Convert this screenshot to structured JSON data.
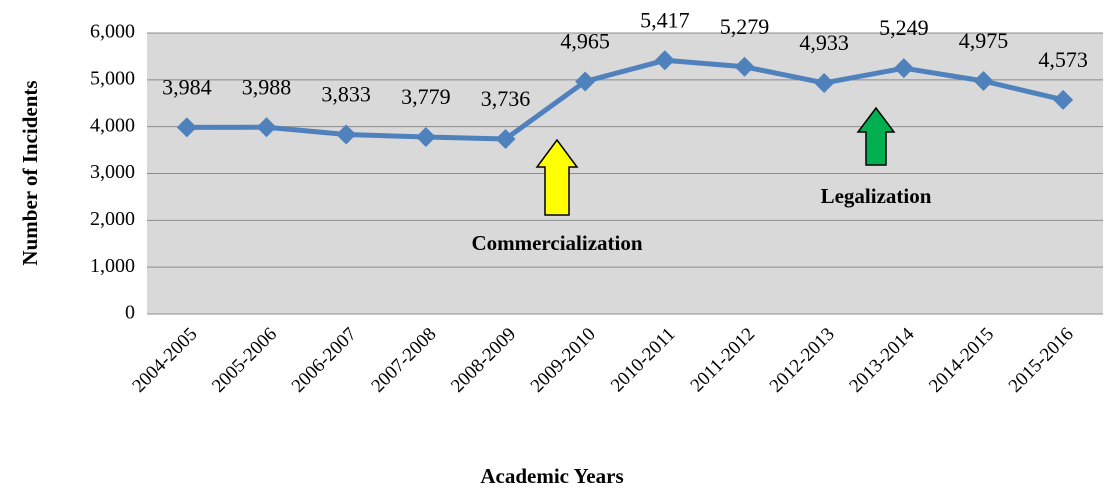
{
  "chart_data": {
    "type": "line",
    "x_label": "Academic Years",
    "y_label": "Number of Incidents",
    "categories": [
      "2004-2005",
      "2005-2006",
      "2006-2007",
      "2007-2008",
      "2008-2009",
      "2009-2010",
      "2010-2011",
      "2011-2012",
      "2012-2013",
      "2013-2014",
      "2014-2015",
      "2015-2016"
    ],
    "series": [
      {
        "color": "#4f81bd",
        "values": [
          3984,
          3988,
          3833,
          3779,
          3736,
          4965,
          5417,
          5279,
          4933,
          5249,
          4975,
          4573
        ],
        "value_labels": [
          "3,984",
          "3,988",
          "3,833",
          "3,779",
          "3,736",
          "4,965",
          "5,417",
          "5,279",
          "4,933",
          "5,249",
          "4,975",
          "4,573"
        ]
      }
    ],
    "ylim": [
      0,
      6000
    ],
    "yticks": [
      0,
      {
        "value": 1000,
        "label": "1,000"
      },
      {
        "value": 2000,
        "label": "2,000"
      },
      {
        "value": 3000,
        "label": "3,000"
      },
      {
        "value": 4000,
        "label": "4,000"
      },
      {
        "value": 5000,
        "label": "5,000"
      },
      {
        "value": 6000,
        "label": "6,000"
      }
    ],
    "grid": true,
    "annotations": [
      {
        "text": "Commercialization",
        "color": "#ffff00"
      },
      {
        "text": "Legalization",
        "color": "#00b050"
      }
    ]
  }
}
